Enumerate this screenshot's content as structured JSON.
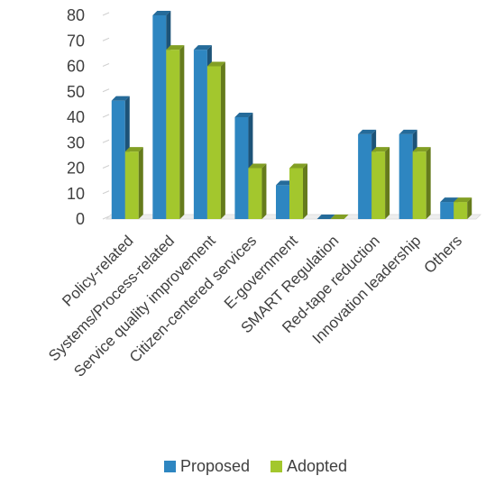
{
  "chart_data": {
    "type": "bar",
    "categories": [
      "Policy-related",
      "Systems/Process-related",
      "Service quality improvement",
      "Citizen-centered services",
      "E-government",
      "SMART Regulation",
      "Red-tape reduction",
      "Innovation leadership",
      "Others"
    ],
    "series": [
      {
        "name": "Proposed",
        "color": "#2e86c1",
        "values": [
          46.5,
          80,
          66.5,
          40,
          13.3,
          0,
          33.3,
          33.3,
          6.7
        ]
      },
      {
        "name": "Adopted",
        "color": "#a3c72d",
        "values": [
          26.5,
          66.5,
          60,
          20,
          20,
          0,
          26.5,
          26.5,
          6.7
        ]
      }
    ],
    "ylim": [
      0,
      80
    ],
    "yticks": [
      "0",
      "10",
      "20",
      "30",
      "40",
      "50",
      "60",
      "70",
      "80"
    ],
    "grid": false,
    "style": "3d-clustered-column",
    "legend": "bottom-center"
  }
}
